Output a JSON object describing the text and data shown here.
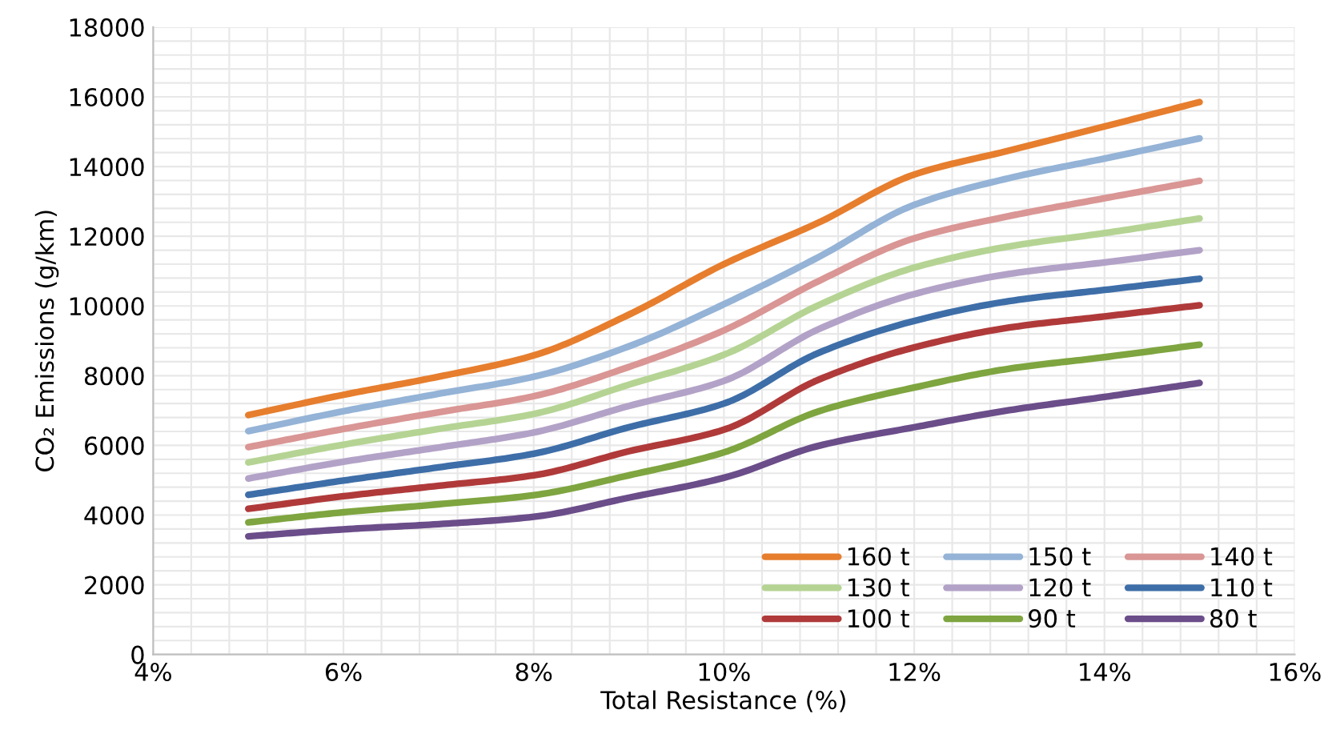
{
  "chart_data": {
    "type": "line",
    "xlabel": "Total Resistance (%)",
    "ylabel": "CO₂ Emissions (g/km)",
    "x": [
      5,
      6,
      7,
      8,
      9,
      10,
      11,
      12,
      13,
      14,
      15
    ],
    "xlim": [
      4,
      16
    ],
    "xticks": [
      {
        "value": 4,
        "label": "4%"
      },
      {
        "value": 6,
        "label": "6%"
      },
      {
        "value": 8,
        "label": "8%"
      },
      {
        "value": 10,
        "label": "10%"
      },
      {
        "value": 12,
        "label": "12%"
      },
      {
        "value": 14,
        "label": "14%"
      },
      {
        "value": 16,
        "label": "16%"
      }
    ],
    "ylim": [
      0,
      18000
    ],
    "yticks": [
      0,
      2000,
      4000,
      6000,
      8000,
      10000,
      12000,
      14000,
      16000,
      18000
    ],
    "grid": true,
    "legend": "bottom right",
    "marker": "none",
    "line_style": "solid",
    "series": [
      {
        "name": "160 t",
        "color": "#e67e2e",
        "values": [
          6870,
          7450,
          7970,
          8580,
          9750,
          11200,
          12400,
          13770,
          14460,
          15150,
          15850
        ]
      },
      {
        "name": "150 t",
        "color": "#94b3d6",
        "values": [
          6410,
          6980,
          7480,
          7970,
          8840,
          10050,
          11410,
          12900,
          13670,
          14230,
          14810
        ]
      },
      {
        "name": "140 t",
        "color": "#d99694",
        "values": [
          5950,
          6470,
          6950,
          7410,
          8250,
          9300,
          10720,
          11940,
          12580,
          13090,
          13590
        ]
      },
      {
        "name": "130 t",
        "color": "#b5d494",
        "values": [
          5510,
          6020,
          6470,
          6900,
          7740,
          8600,
          10030,
          11100,
          11710,
          12090,
          12510
        ]
      },
      {
        "name": "120 t",
        "color": "#b3a2c7",
        "values": [
          5050,
          5530,
          5940,
          6370,
          7130,
          7850,
          9340,
          10340,
          10920,
          11250,
          11600
        ]
      },
      {
        "name": "110 t",
        "color": "#3e6ea8",
        "values": [
          4580,
          4990,
          5370,
          5760,
          6520,
          7200,
          8660,
          9570,
          10140,
          10460,
          10780
        ]
      },
      {
        "name": "100 t",
        "color": "#b03a3a",
        "values": [
          4180,
          4540,
          4840,
          5140,
          5830,
          6450,
          7890,
          8810,
          9380,
          9700,
          10020
        ]
      },
      {
        "name": "90 t",
        "color": "#7ea53f",
        "values": [
          3790,
          4080,
          4310,
          4570,
          5140,
          5800,
          6980,
          7660,
          8200,
          8530,
          8890
        ]
      },
      {
        "name": "80 t",
        "color": "#6b4d8a",
        "values": [
          3390,
          3590,
          3740,
          3950,
          4500,
          5070,
          5990,
          6520,
          7010,
          7390,
          7790
        ]
      }
    ]
  }
}
